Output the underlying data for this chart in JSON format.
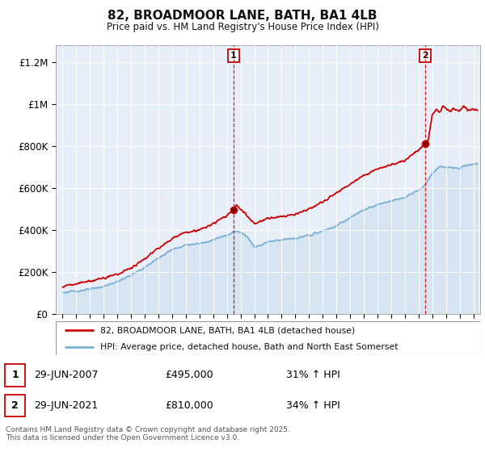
{
  "title": "82, BROADMOOR LANE, BATH, BA1 4LB",
  "subtitle": "Price paid vs. HM Land Registry's House Price Index (HPI)",
  "ylabel_ticks": [
    "£0",
    "£200K",
    "£400K",
    "£600K",
    "£800K",
    "£1M",
    "£1.2M"
  ],
  "ytick_values": [
    0,
    200000,
    400000,
    600000,
    800000,
    1000000,
    1200000
  ],
  "ylim": [
    0,
    1280000
  ],
  "xlim_start": 1994.5,
  "xlim_end": 2025.5,
  "legend_line1": "82, BROADMOOR LANE, BATH, BA1 4LB (detached house)",
  "legend_line2": "HPI: Average price, detached house, Bath and North East Somerset",
  "sale1_x": 2007.49,
  "sale1_price": 495000,
  "sale2_x": 2021.49,
  "sale2_price": 810000,
  "footer": "Contains HM Land Registry data © Crown copyright and database right 2025.\nThis data is licensed under the Open Government Licence v3.0.",
  "red_color": "#cc0000",
  "blue_color": "#7ab0d4",
  "background_color": "#ffffff",
  "plot_bg_color": "#e8eef8"
}
